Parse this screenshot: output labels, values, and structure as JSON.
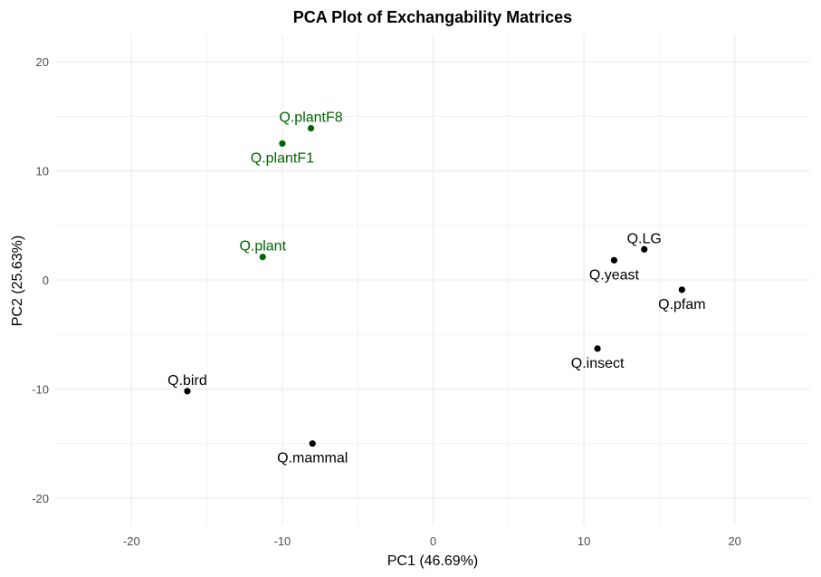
{
  "chart_data": {
    "type": "scatter",
    "title": "PCA Plot of Exchangability Matrices",
    "xlabel": "PC1 (46.69%)",
    "ylabel": "PC2 (25.63%)",
    "xlim": [
      -25,
      25
    ],
    "ylim": [
      -22.5,
      22.5
    ],
    "xticks": [
      -20,
      -10,
      0,
      10,
      20
    ],
    "yticks": [
      -20,
      -10,
      0,
      10,
      20
    ],
    "grid": true,
    "colors": {
      "plant": "#006400",
      "other": "#000000",
      "grid": "#ebebeb"
    },
    "points": [
      {
        "label": "Q.plantF8",
        "x": -8.1,
        "y": 13.9,
        "group": "plant",
        "label_pos": "above"
      },
      {
        "label": "Q.plantF1",
        "x": -10.0,
        "y": 12.5,
        "group": "plant",
        "label_pos": "below"
      },
      {
        "label": "Q.plant",
        "x": -11.3,
        "y": 2.1,
        "group": "plant",
        "label_pos": "above"
      },
      {
        "label": "Q.LG",
        "x": 14.0,
        "y": 2.8,
        "group": "other",
        "label_pos": "above"
      },
      {
        "label": "Q.yeast",
        "x": 12.0,
        "y": 1.8,
        "group": "other",
        "label_pos": "below"
      },
      {
        "label": "Q.pfam",
        "x": 16.5,
        "y": -0.9,
        "group": "other",
        "label_pos": "below"
      },
      {
        "label": "Q.insect",
        "x": 10.9,
        "y": -6.3,
        "group": "other",
        "label_pos": "below"
      },
      {
        "label": "Q.bird",
        "x": -16.3,
        "y": -10.2,
        "group": "other",
        "label_pos": "above"
      },
      {
        "label": "Q.mammal",
        "x": -8.0,
        "y": -15.0,
        "group": "other",
        "label_pos": "below"
      }
    ]
  }
}
